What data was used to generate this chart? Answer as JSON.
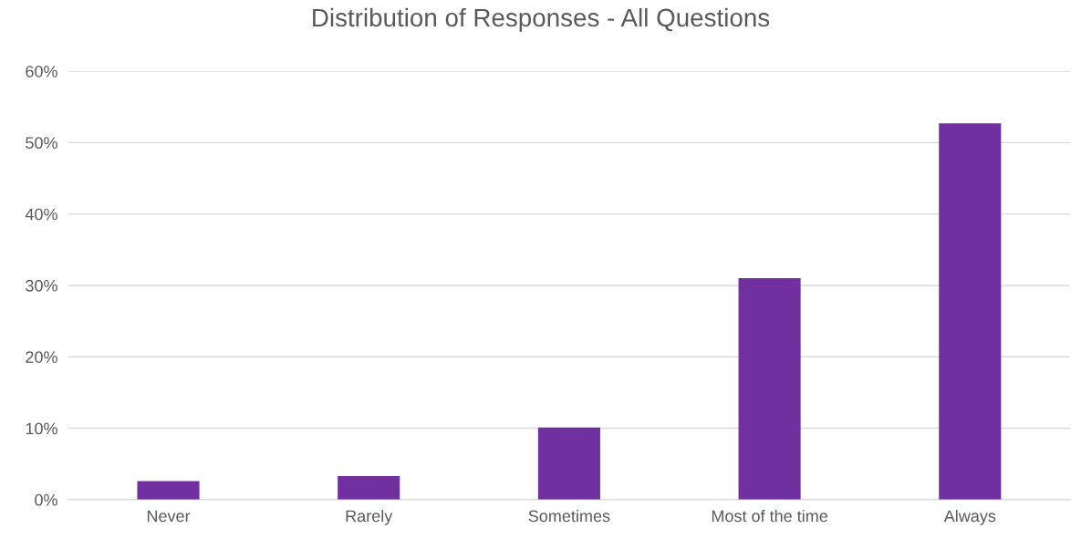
{
  "chart_data": {
    "type": "bar",
    "title": "Distribution of Responses - All Questions",
    "categories": [
      "Never",
      "Rarely",
      "Sometimes",
      "Most of the time",
      "Always"
    ],
    "values": [
      2.6,
      3.3,
      10.1,
      31.0,
      52.7
    ],
    "color": "#7030a0",
    "ylim": [
      0,
      60
    ],
    "yticks": [
      {
        "value": 0,
        "label": "0%"
      },
      {
        "value": 10,
        "label": "10%"
      },
      {
        "value": 20,
        "label": "20%"
      },
      {
        "value": 30,
        "label": "30%"
      },
      {
        "value": 40,
        "label": "40%"
      },
      {
        "value": 50,
        "label": "50%"
      },
      {
        "value": 60,
        "label": "60%"
      }
    ],
    "grid": "y",
    "legend": false
  }
}
